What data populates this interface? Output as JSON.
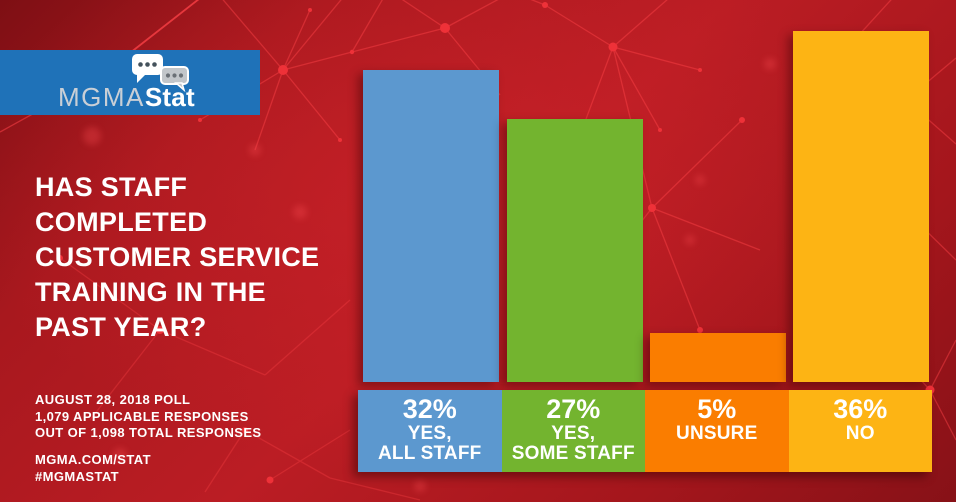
{
  "theme": {
    "background_red": "#B01B21",
    "logo_blue": "#1F72B8",
    "text_white": "#FFFFFF",
    "network_line_red": "#F0383F"
  },
  "logo": {
    "mgma": "MGMA",
    "stat": "Stat",
    "bubble_large_icon": "speech-bubble-white-three-dots",
    "bubble_small_icon": "speech-bubble-gray-three-dots"
  },
  "question": {
    "lines": [
      "HAS STAFF",
      "COMPLETED",
      "CUSTOMER SERVICE",
      "TRAINING IN THE",
      "PAST YEAR?"
    ]
  },
  "poll_meta": {
    "lines": [
      "AUGUST 28, 2018 POLL",
      "1,079 APPLICABLE RESPONSES",
      "OUT OF 1,098 TOTAL RESPONSES"
    ]
  },
  "footer": {
    "lines": [
      "MGMA.COM/STAT",
      "#MGMASTAT"
    ]
  },
  "chart_data": {
    "type": "bar",
    "title": "HAS STAFF COMPLETED CUSTOMER SERVICE TRAINING IN THE PAST YEAR?",
    "categories": [
      "YES, ALL STAFF",
      "YES, SOME STAFF",
      "UNSURE",
      "NO"
    ],
    "values": [
      32,
      27,
      5,
      36
    ],
    "unit": "%",
    "value_labels": [
      "32%",
      "27%",
      "5%",
      "36%"
    ],
    "category_label_lines": [
      [
        "YES,",
        "ALL STAFF"
      ],
      [
        "YES,",
        "SOME STAFF"
      ],
      [
        "UNSURE"
      ],
      [
        "NO"
      ]
    ],
    "colors": [
      "#5C98CF",
      "#73B42F",
      "#FA7D00",
      "#FDB414"
    ],
    "orientation": "vertical",
    "ylim": [
      0,
      36
    ],
    "grid": false,
    "legend": false,
    "source_note": "AUGUST 28, 2018 POLL — 1,079 APPLICABLE RESPONSES OUT OF 1,098 TOTAL RESPONSES"
  }
}
